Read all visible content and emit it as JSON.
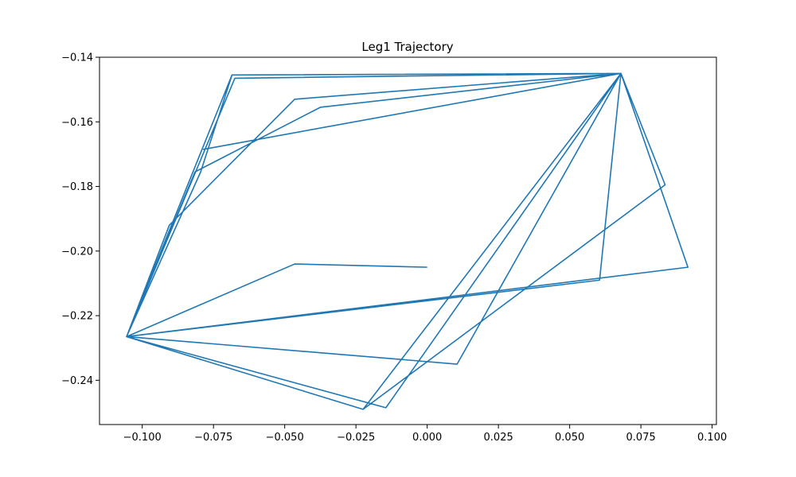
{
  "chart_data": {
    "type": "line",
    "title": "Leg1 Trajectory",
    "xlabel": "",
    "ylabel": "",
    "xlim": [
      -0.115,
      0.1015
    ],
    "ylim": [
      -0.2537,
      -0.14
    ],
    "xticks": [
      -0.1,
      -0.075,
      -0.05,
      -0.025,
      0.0,
      0.025,
      0.05,
      0.075,
      0.1
    ],
    "xtick_labels": [
      "−0.100",
      "−0.075",
      "−0.050",
      "−0.025",
      "0.000",
      "0.025",
      "0.050",
      "0.075",
      "0.100"
    ],
    "yticks": [
      -0.14,
      -0.16,
      -0.18,
      -0.2,
      -0.22,
      -0.24
    ],
    "ytick_labels": [
      "−0.14",
      "−0.16",
      "−0.18",
      "−0.20",
      "−0.22",
      "−0.24"
    ],
    "grid": false,
    "color": "#1f77b4",
    "series": [
      {
        "x": [
          0.0,
          -0.0465,
          -0.1055,
          0.0605,
          0.068,
          -0.0225,
          -0.1055,
          -0.0685,
          0.068,
          -0.0465,
          -0.0905,
          -0.1055,
          0.0915,
          0.068,
          0.0105,
          -0.1055,
          -0.0675,
          0.068,
          -0.0785,
          0.068,
          -0.0375,
          -0.0815,
          -0.1055,
          -0.0145,
          0.068,
          0.0835,
          -0.0225,
          -0.1055,
          -0.0795,
          -0.0685,
          0.068
        ],
        "y": [
          -0.205,
          -0.204,
          -0.2265,
          -0.209,
          -0.145,
          -0.249,
          -0.2265,
          -0.1455,
          -0.145,
          -0.153,
          -0.192,
          -0.2265,
          -0.205,
          -0.145,
          -0.235,
          -0.2265,
          -0.1465,
          -0.145,
          -0.1685,
          -0.145,
          -0.1555,
          -0.1755,
          -0.2265,
          -0.2485,
          -0.145,
          -0.1795,
          -0.249,
          -0.2265,
          -0.1755,
          -0.1455,
          -0.145
        ]
      }
    ]
  }
}
